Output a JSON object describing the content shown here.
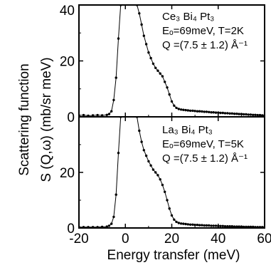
{
  "chart_data": {
    "type": "scatter",
    "xlabel": "Energy transfer (meV)",
    "ylabel_line1": "Scattering function",
    "ylabel_line2": "S (Q,ω) (mb/sr meV)",
    "xlim": [
      -20,
      60
    ],
    "x_ticks": [
      "-20",
      "0",
      "20",
      "40",
      "60"
    ],
    "panels": [
      {
        "name": "top",
        "ylim": [
          0,
          40
        ],
        "y_ticks": [
          "0",
          "20",
          "40"
        ],
        "annotation": [
          "Ce₃ Bi₄ Pt₃",
          "Eₒ=69meV, T=2K",
          "Q =(7.5 ± 1.2) Å⁻¹"
        ],
        "points": [
          [
            -20,
            0.5
          ],
          [
            -18,
            0.6
          ],
          [
            -16,
            0.4
          ],
          [
            -14,
            0.5
          ],
          [
            -12,
            0.6
          ],
          [
            -10,
            0.5
          ],
          [
            -8,
            0.7
          ],
          [
            -7,
            1.0
          ],
          [
            -6,
            2.0
          ],
          [
            -5,
            6
          ],
          [
            -4,
            14
          ],
          [
            -3,
            28
          ],
          [
            -2,
            40
          ],
          [
            5,
            40
          ],
          [
            6,
            37
          ],
          [
            7,
            33
          ],
          [
            8,
            29
          ],
          [
            9,
            26
          ],
          [
            10,
            23
          ],
          [
            11,
            21
          ],
          [
            12,
            19
          ],
          [
            13,
            17.5
          ],
          [
            14,
            16.5
          ],
          [
            15,
            15.5
          ],
          [
            16,
            14.5
          ],
          [
            17,
            12.5
          ],
          [
            18,
            10.5
          ],
          [
            19,
            8
          ],
          [
            20,
            5.5
          ],
          [
            21,
            4
          ],
          [
            22,
            3.2
          ],
          [
            23,
            2.8
          ],
          [
            24,
            2.6
          ],
          [
            25,
            2.5
          ],
          [
            26,
            2.4
          ],
          [
            27,
            2.3
          ],
          [
            28,
            2.2
          ],
          [
            29,
            2.2
          ],
          [
            30,
            2.1
          ],
          [
            31,
            2.0
          ],
          [
            32,
            2.0
          ],
          [
            33,
            1.9
          ],
          [
            34,
            1.8
          ],
          [
            35,
            1.8
          ],
          [
            36,
            1.7
          ],
          [
            37,
            1.6
          ],
          [
            38,
            1.6
          ],
          [
            39,
            1.5
          ],
          [
            40,
            1.5
          ],
          [
            41,
            1.4
          ],
          [
            42,
            1.4
          ],
          [
            43,
            1.3
          ],
          [
            44,
            1.3
          ],
          [
            45,
            1.2
          ],
          [
            46,
            1.2
          ],
          [
            47,
            1.1
          ],
          [
            48,
            1.1
          ],
          [
            49,
            1.0
          ],
          [
            50,
            1.0
          ],
          [
            51,
            0.9
          ],
          [
            52,
            0.9
          ],
          [
            53,
            0.8
          ],
          [
            54,
            0.8
          ],
          [
            55,
            0.7
          ],
          [
            56,
            0.7
          ],
          [
            57,
            0.6
          ],
          [
            58,
            0.6
          ],
          [
            59,
            0.5
          ],
          [
            60,
            0.5
          ]
        ]
      },
      {
        "name": "bottom",
        "ylim": [
          0,
          40
        ],
        "y_ticks": [
          "0",
          "20"
        ],
        "annotation": [
          "La₃ Bi₄ Pt₃",
          "Eₒ=69meV, T=5K",
          "Q =(7.5 ± 1.2) Å⁻¹"
        ],
        "points": [
          [
            -20,
            0.3
          ],
          [
            -18,
            0.3
          ],
          [
            -16,
            0.3
          ],
          [
            -14,
            0.3
          ],
          [
            -12,
            0.3
          ],
          [
            -10,
            0.4
          ],
          [
            -8,
            0.5
          ],
          [
            -7,
            0.8
          ],
          [
            -6,
            1.5
          ],
          [
            -5,
            4
          ],
          [
            -4,
            12
          ],
          [
            -3,
            27
          ],
          [
            -2,
            40
          ],
          [
            5,
            40
          ],
          [
            6,
            35
          ],
          [
            7,
            31
          ],
          [
            8,
            28
          ],
          [
            9,
            26
          ],
          [
            10,
            24
          ],
          [
            11,
            22.5
          ],
          [
            12,
            21
          ],
          [
            13,
            20
          ],
          [
            14,
            19
          ],
          [
            15,
            17.5
          ],
          [
            16,
            15.5
          ],
          [
            17,
            13
          ],
          [
            18,
            10
          ],
          [
            19,
            7
          ],
          [
            20,
            4.5
          ],
          [
            21,
            3
          ],
          [
            22,
            2.2
          ],
          [
            23,
            1.8
          ],
          [
            24,
            1.6
          ],
          [
            25,
            1.5
          ],
          [
            26,
            1.4
          ],
          [
            27,
            1.3
          ],
          [
            28,
            1.2
          ],
          [
            29,
            1.2
          ],
          [
            30,
            1.1
          ],
          [
            31,
            1.1
          ],
          [
            32,
            1.0
          ],
          [
            33,
            1.0
          ],
          [
            34,
            0.9
          ],
          [
            35,
            0.9
          ],
          [
            36,
            0.9
          ],
          [
            37,
            0.8
          ],
          [
            38,
            0.8
          ],
          [
            39,
            0.8
          ],
          [
            40,
            0.7
          ],
          [
            41,
            0.7
          ],
          [
            42,
            0.7
          ],
          [
            43,
            0.6
          ],
          [
            44,
            0.6
          ],
          [
            45,
            0.6
          ],
          [
            46,
            0.6
          ],
          [
            47,
            0.5
          ],
          [
            48,
            0.5
          ],
          [
            49,
            0.5
          ],
          [
            50,
            0.5
          ],
          [
            51,
            0.4
          ],
          [
            52,
            0.4
          ],
          [
            53,
            0.4
          ],
          [
            54,
            0.4
          ],
          [
            55,
            0.4
          ],
          [
            56,
            0.3
          ],
          [
            57,
            0.3
          ],
          [
            58,
            0.3
          ],
          [
            59,
            0.3
          ],
          [
            60,
            0.3
          ]
        ]
      }
    ]
  }
}
